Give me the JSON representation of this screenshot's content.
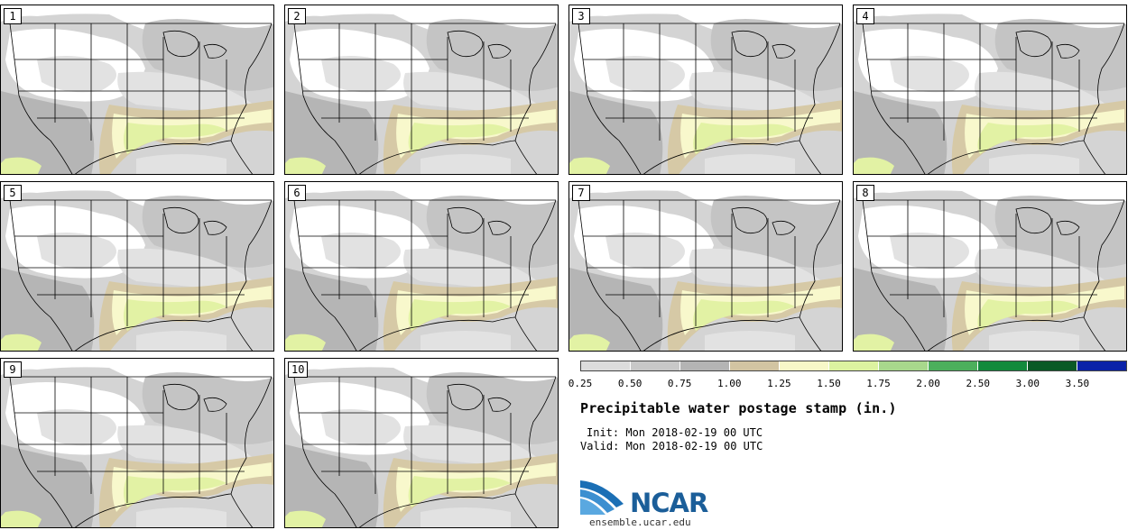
{
  "panels": [
    {
      "label": "1"
    },
    {
      "label": "2"
    },
    {
      "label": "3"
    },
    {
      "label": "4"
    },
    {
      "label": "5"
    },
    {
      "label": "6"
    },
    {
      "label": "7"
    },
    {
      "label": "8"
    },
    {
      "label": "9"
    },
    {
      "label": "10"
    }
  ],
  "legend": {
    "colors": [
      "#dcdcdc",
      "#c8c8c8",
      "#b4b4b4",
      "#d2c4a2",
      "#f8f8c8",
      "#dcf2a0",
      "#a8d88c",
      "#4caf5c",
      "#128a3c",
      "#0a5a26",
      "#0b22a8"
    ],
    "ticks": [
      "0.25",
      "0.50",
      "0.75",
      "1.00",
      "1.25",
      "1.50",
      "1.75",
      "2.00",
      "2.50",
      "3.00",
      "3.50"
    ]
  },
  "map_colors": {
    "background": "#d4d4d4",
    "white": "#ffffff",
    "light_gray": "#e2e2e2",
    "mid_gray": "#c4c4c4",
    "dark_gray": "#b5b5b5",
    "tan": "#d6c9a6",
    "pale_yellow": "#f8f8cc",
    "yellow_green": "#e2f2a4",
    "boundary": "#000000"
  },
  "title": "Precipitable water postage stamp (in.)",
  "init_label": "Init:",
  "init_value": "Mon 2018-02-19 00 UTC",
  "valid_label": "Valid:",
  "valid_value": "Mon 2018-02-19 00 UTC",
  "logo": {
    "name": "NCAR",
    "url": "ensemble.ucar.edu"
  }
}
